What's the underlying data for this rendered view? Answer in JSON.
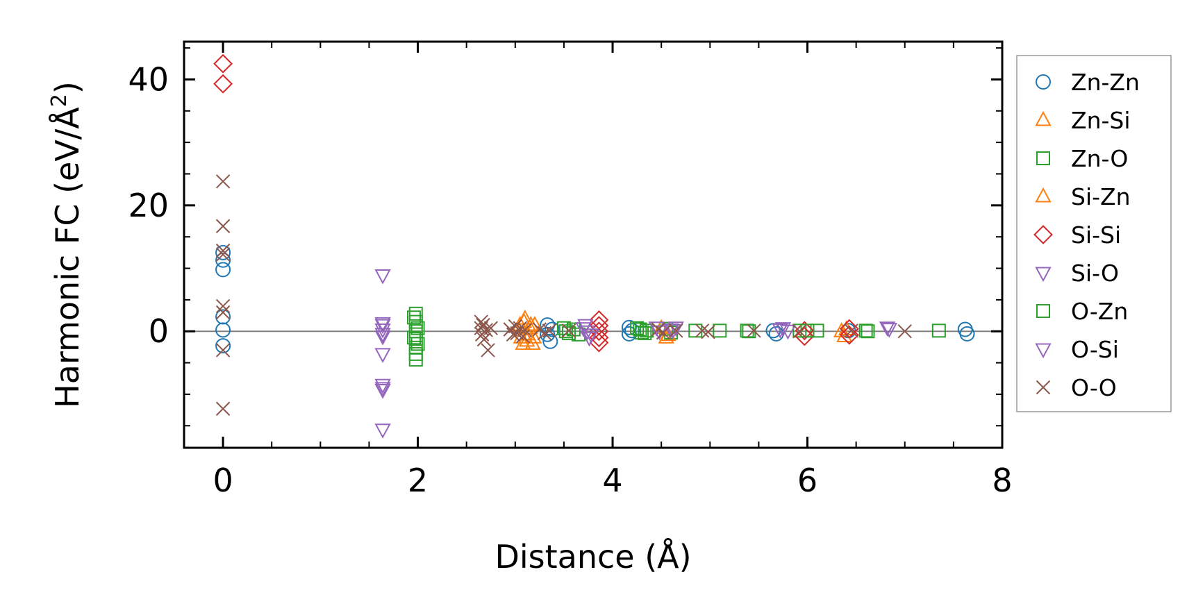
{
  "chart_data": {
    "type": "scatter",
    "xlabel": "Distance (Å)",
    "ylabel_prefix": "Harmonic FC (eV/Å",
    "ylabel_sup": "2",
    "ylabel_suffix": ")",
    "xlim": [
      -0.4,
      8.0
    ],
    "ylim": [
      -18.5,
      46.0
    ],
    "xticks": [
      0,
      2,
      4,
      6,
      8
    ],
    "xtick_labels": [
      "0",
      "2",
      "4",
      "6",
      "8"
    ],
    "yticks": [
      0,
      20,
      40
    ],
    "ytick_labels": [
      "0",
      "20",
      "40"
    ],
    "grid": false,
    "zero_line": true,
    "legend_position": "outside right",
    "series": [
      {
        "name": "Zn-Zn",
        "marker": "circle",
        "color": "#1f77b4",
        "x": [
          0,
          0,
          0,
          0,
          0,
          0,
          3.33,
          3.33,
          3.36,
          3.38,
          4.17,
          4.17,
          4.2,
          5.65,
          5.68,
          6.42,
          7.62,
          7.64
        ],
        "y": [
          12.5,
          11.3,
          9.8,
          2.3,
          -2.3,
          0.2,
          1.0,
          -0.5,
          -1.6,
          0.3,
          0.6,
          -0.4,
          0.1,
          0.1,
          -0.4,
          0.1,
          0.3,
          -0.4
        ]
      },
      {
        "name": "Zn-Si",
        "marker": "triangle-up",
        "color": "#ff7f0e",
        "x": [
          3.05,
          3.08,
          3.1,
          3.12,
          3.15,
          3.18,
          3.2,
          4.55,
          6.35,
          6.38
        ],
        "y": [
          1.0,
          -2.0,
          2.0,
          -1.5,
          0.5,
          -2.0,
          1.0,
          -1.0,
          0.0,
          -0.8
        ]
      },
      {
        "name": "Zn-O",
        "marker": "square",
        "color": "#2ca02c",
        "x": [
          1.98,
          1.98,
          1.98,
          1.98,
          1.98,
          1.98,
          1.98,
          3.5,
          3.55,
          3.6,
          3.65,
          4.25,
          4.3,
          4.35,
          4.55,
          4.6,
          4.85,
          5.1,
          5.38,
          5.92,
          6.1,
          6.6,
          7.35
        ],
        "y": [
          2.8,
          1.5,
          0.0,
          -1.2,
          -2.6,
          -3.6,
          -4.5,
          0.5,
          -0.3,
          0.3,
          -0.5,
          0.5,
          -0.2,
          0.1,
          0.4,
          -0.2,
          0.1,
          0.1,
          0.1,
          0.1,
          0.1,
          0.1,
          0.1
        ]
      },
      {
        "name": "Si-Zn",
        "marker": "triangle-up",
        "color": "#ff7f0e",
        "x": [
          3.06,
          3.09,
          3.13,
          3.16,
          3.19,
          4.5,
          4.57,
          6.4
        ],
        "y": [
          -1.0,
          1.5,
          -0.5,
          1.0,
          -1.0,
          0.5,
          -0.6,
          0.3
        ]
      },
      {
        "name": "Si-Si",
        "marker": "diamond",
        "color": "#d62728",
        "x": [
          0,
          0,
          3.86,
          3.86,
          3.86,
          3.86,
          3.86,
          5.97,
          5.97,
          6.43,
          6.43
        ],
        "y": [
          42.5,
          39.3,
          1.8,
          0.9,
          0.0,
          -1.0,
          -1.8,
          0.1,
          -0.8,
          0.4,
          -0.6
        ]
      },
      {
        "name": "Si-O",
        "marker": "triangle-down",
        "color": "#9467bd",
        "x": [
          1.64,
          1.64,
          1.64,
          1.64,
          1.64,
          1.64,
          1.64,
          1.64,
          3.72,
          3.74,
          3.76,
          4.45,
          4.6,
          4.65,
          5.75,
          5.8,
          6.82
        ],
        "y": [
          8.9,
          1.3,
          0.3,
          -0.4,
          -3.6,
          -8.5,
          -9.3,
          -15.6,
          1.0,
          0.0,
          -1.0,
          0.6,
          0.3,
          0.6,
          0.5,
          0.1,
          0.6
        ]
      },
      {
        "name": "O-Zn",
        "marker": "square",
        "color": "#2ca02c",
        "x": [
          1.96,
          2.0,
          1.96,
          2.0,
          3.52,
          4.28,
          4.33,
          5.4,
          6.0,
          6.62
        ],
        "y": [
          2.2,
          0.5,
          -1.0,
          -2.0,
          0.0,
          0.3,
          -0.3,
          0.0,
          0.1,
          0.0
        ]
      },
      {
        "name": "O-Si",
        "marker": "triangle-down",
        "color": "#9467bd",
        "x": [
          1.64,
          1.64,
          1.64,
          3.7,
          3.78,
          4.48,
          4.62,
          5.72,
          6.84
        ],
        "y": [
          1.0,
          -0.8,
          -9.0,
          0.5,
          -0.5,
          0.0,
          0.2,
          0.3,
          0.4
        ]
      },
      {
        "name": "O-O",
        "marker": "x",
        "color": "#8c564b",
        "x": [
          0,
          0,
          0,
          0,
          0,
          0,
          0,
          0,
          2.65,
          2.65,
          2.66,
          2.67,
          2.68,
          2.7,
          2.72,
          2.75,
          2.95,
          2.98,
          3.0,
          3.02,
          3.05,
          3.08,
          3.1,
          3.25,
          3.3,
          3.35,
          3.55,
          4.47,
          4.52,
          4.65,
          4.92,
          4.98,
          5.45,
          5.92,
          6.45,
          7.0
        ],
        "y": [
          23.8,
          16.7,
          12.8,
          12.2,
          4.0,
          3.0,
          -3.0,
          -12.3,
          1.5,
          0.5,
          -0.5,
          1.0,
          -1.3,
          0.2,
          -3.0,
          0.5,
          0.3,
          -0.5,
          0.8,
          -0.3,
          0.5,
          -0.8,
          0.2,
          0.3,
          -0.3,
          0.1,
          0.1,
          0.3,
          -0.2,
          0.1,
          0.1,
          -0.1,
          0.1,
          0.0,
          0.1,
          0.0
        ]
      }
    ]
  }
}
